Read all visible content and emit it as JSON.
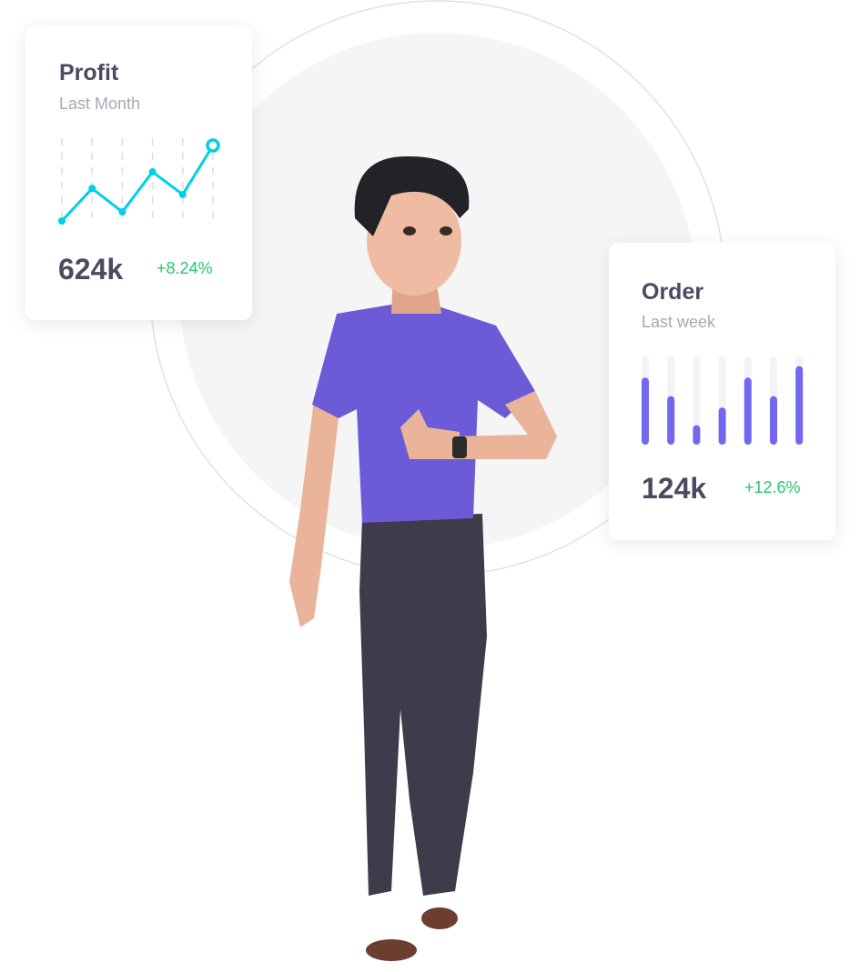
{
  "profit_card": {
    "title": "Profit",
    "subtitle": "Last Month",
    "value": "624k",
    "change": "+8.24%",
    "line_color": "#00cfe8",
    "change_color": "#28c76f"
  },
  "order_card": {
    "title": "Order",
    "subtitle": "Last week",
    "value": "124k",
    "change": "+12.6%",
    "bar_color": "#7367f0",
    "track_color": "#f3f2f7",
    "change_color": "#28c76f"
  },
  "chart_data": [
    {
      "type": "line",
      "values": [
        0,
        43,
        12,
        65,
        35,
        100
      ],
      "last_point_marker": "hollow-circle",
      "grid": "vertical-dashed"
    },
    {
      "type": "bar",
      "values": [
        0.76,
        0.55,
        0.22,
        0.42,
        0.76,
        0.55,
        0.89
      ],
      "max": 1
    }
  ],
  "illustration": {
    "subject": "3d-man-thumbs-up",
    "shirt_color": "#6b5bd6",
    "pants_color": "#3f3b4a"
  }
}
